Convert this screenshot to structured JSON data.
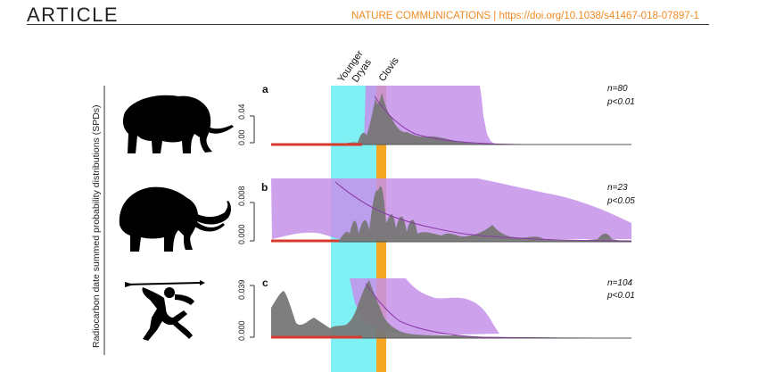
{
  "header": {
    "section": "ARTICLE",
    "journal_line": "NATURE COMMUNICATIONS | https://doi.org/10.1038/s41467-018-07897-1"
  },
  "figure": {
    "y_axis_title": "Radiocarbon date summed probability distributions (SPDs)",
    "band_labels": {
      "younger": "Younger",
      "dryas": "Dryas",
      "clovis": "Clovis"
    },
    "colors": {
      "younger_dryas_band": "#7ff0f3",
      "clovis_band": "#f5a623",
      "null_envelope": "#c690ea",
      "spd_fill": "#777777",
      "baseline_red": "#d93a2e",
      "fit_curve": "#8a3aa6",
      "silhouette": "#000000"
    },
    "panels": [
      {
        "label": "a",
        "n_text": "n=80",
        "p_text": "p<0.01",
        "ticks": [
          "0.00",
          "0.04"
        ],
        "icon": "mastodon-icon"
      },
      {
        "label": "b",
        "n_text": "n=23",
        "p_text": "p<0.05",
        "ticks": [
          "0.000",
          "0.008"
        ],
        "icon": "mammoth-icon"
      },
      {
        "label": "c",
        "n_text": "n=104",
        "p_text": "p<0.01",
        "ticks": [
          "0.000",
          "0.039"
        ],
        "icon": "human-hunter-icon"
      }
    ]
  }
}
